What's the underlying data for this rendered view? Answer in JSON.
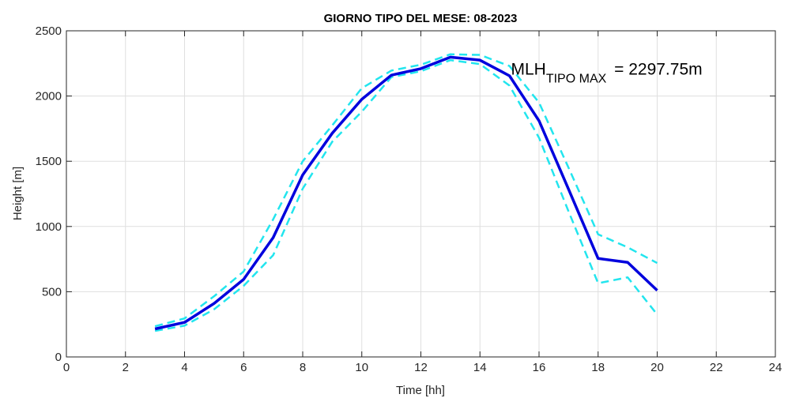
{
  "chart_data": {
    "type": "line",
    "title": "GIORNO TIPO DEL MESE:  08-2023",
    "xlabel": "Time [hh]",
    "ylabel": "Height [m]",
    "xlim": [
      0,
      24
    ],
    "ylim": [
      0,
      2500
    ],
    "xticks": [
      0,
      2,
      4,
      6,
      8,
      10,
      12,
      14,
      16,
      18,
      20,
      22,
      24
    ],
    "yticks": [
      0,
      500,
      1000,
      1500,
      2000,
      2500
    ],
    "grid": true,
    "x": [
      3,
      4,
      5,
      6,
      7,
      8,
      9,
      10,
      11,
      12,
      13,
      14,
      15,
      16,
      17,
      18,
      19,
      20
    ],
    "series": [
      {
        "style": "solid",
        "color": "#0000dd",
        "values": [
          215,
          265,
          410,
          595,
          915,
          1395,
          1715,
          1975,
          2160,
          2210,
          2298,
          2275,
          2155,
          1810,
          1285,
          755,
          725,
          510
        ]
      },
      {
        "style": "dashed",
        "color": "#22e5ee",
        "values": [
          235,
          295,
          465,
          655,
          1055,
          1500,
          1775,
          2060,
          2195,
          2240,
          2320,
          2315,
          2230,
          1950,
          1450,
          940,
          840,
          720
        ]
      },
      {
        "style": "dashed",
        "color": "#22e5ee",
        "values": [
          200,
          240,
          365,
          545,
          780,
          1290,
          1650,
          1880,
          2145,
          2190,
          2275,
          2245,
          2080,
          1680,
          1115,
          565,
          610,
          325
        ]
      }
    ],
    "annotation": {
      "main": "MLH",
      "sub": "TIPO MAX",
      "value_text": " = 2297.75m",
      "x": 15.05,
      "y": 2165
    }
  }
}
